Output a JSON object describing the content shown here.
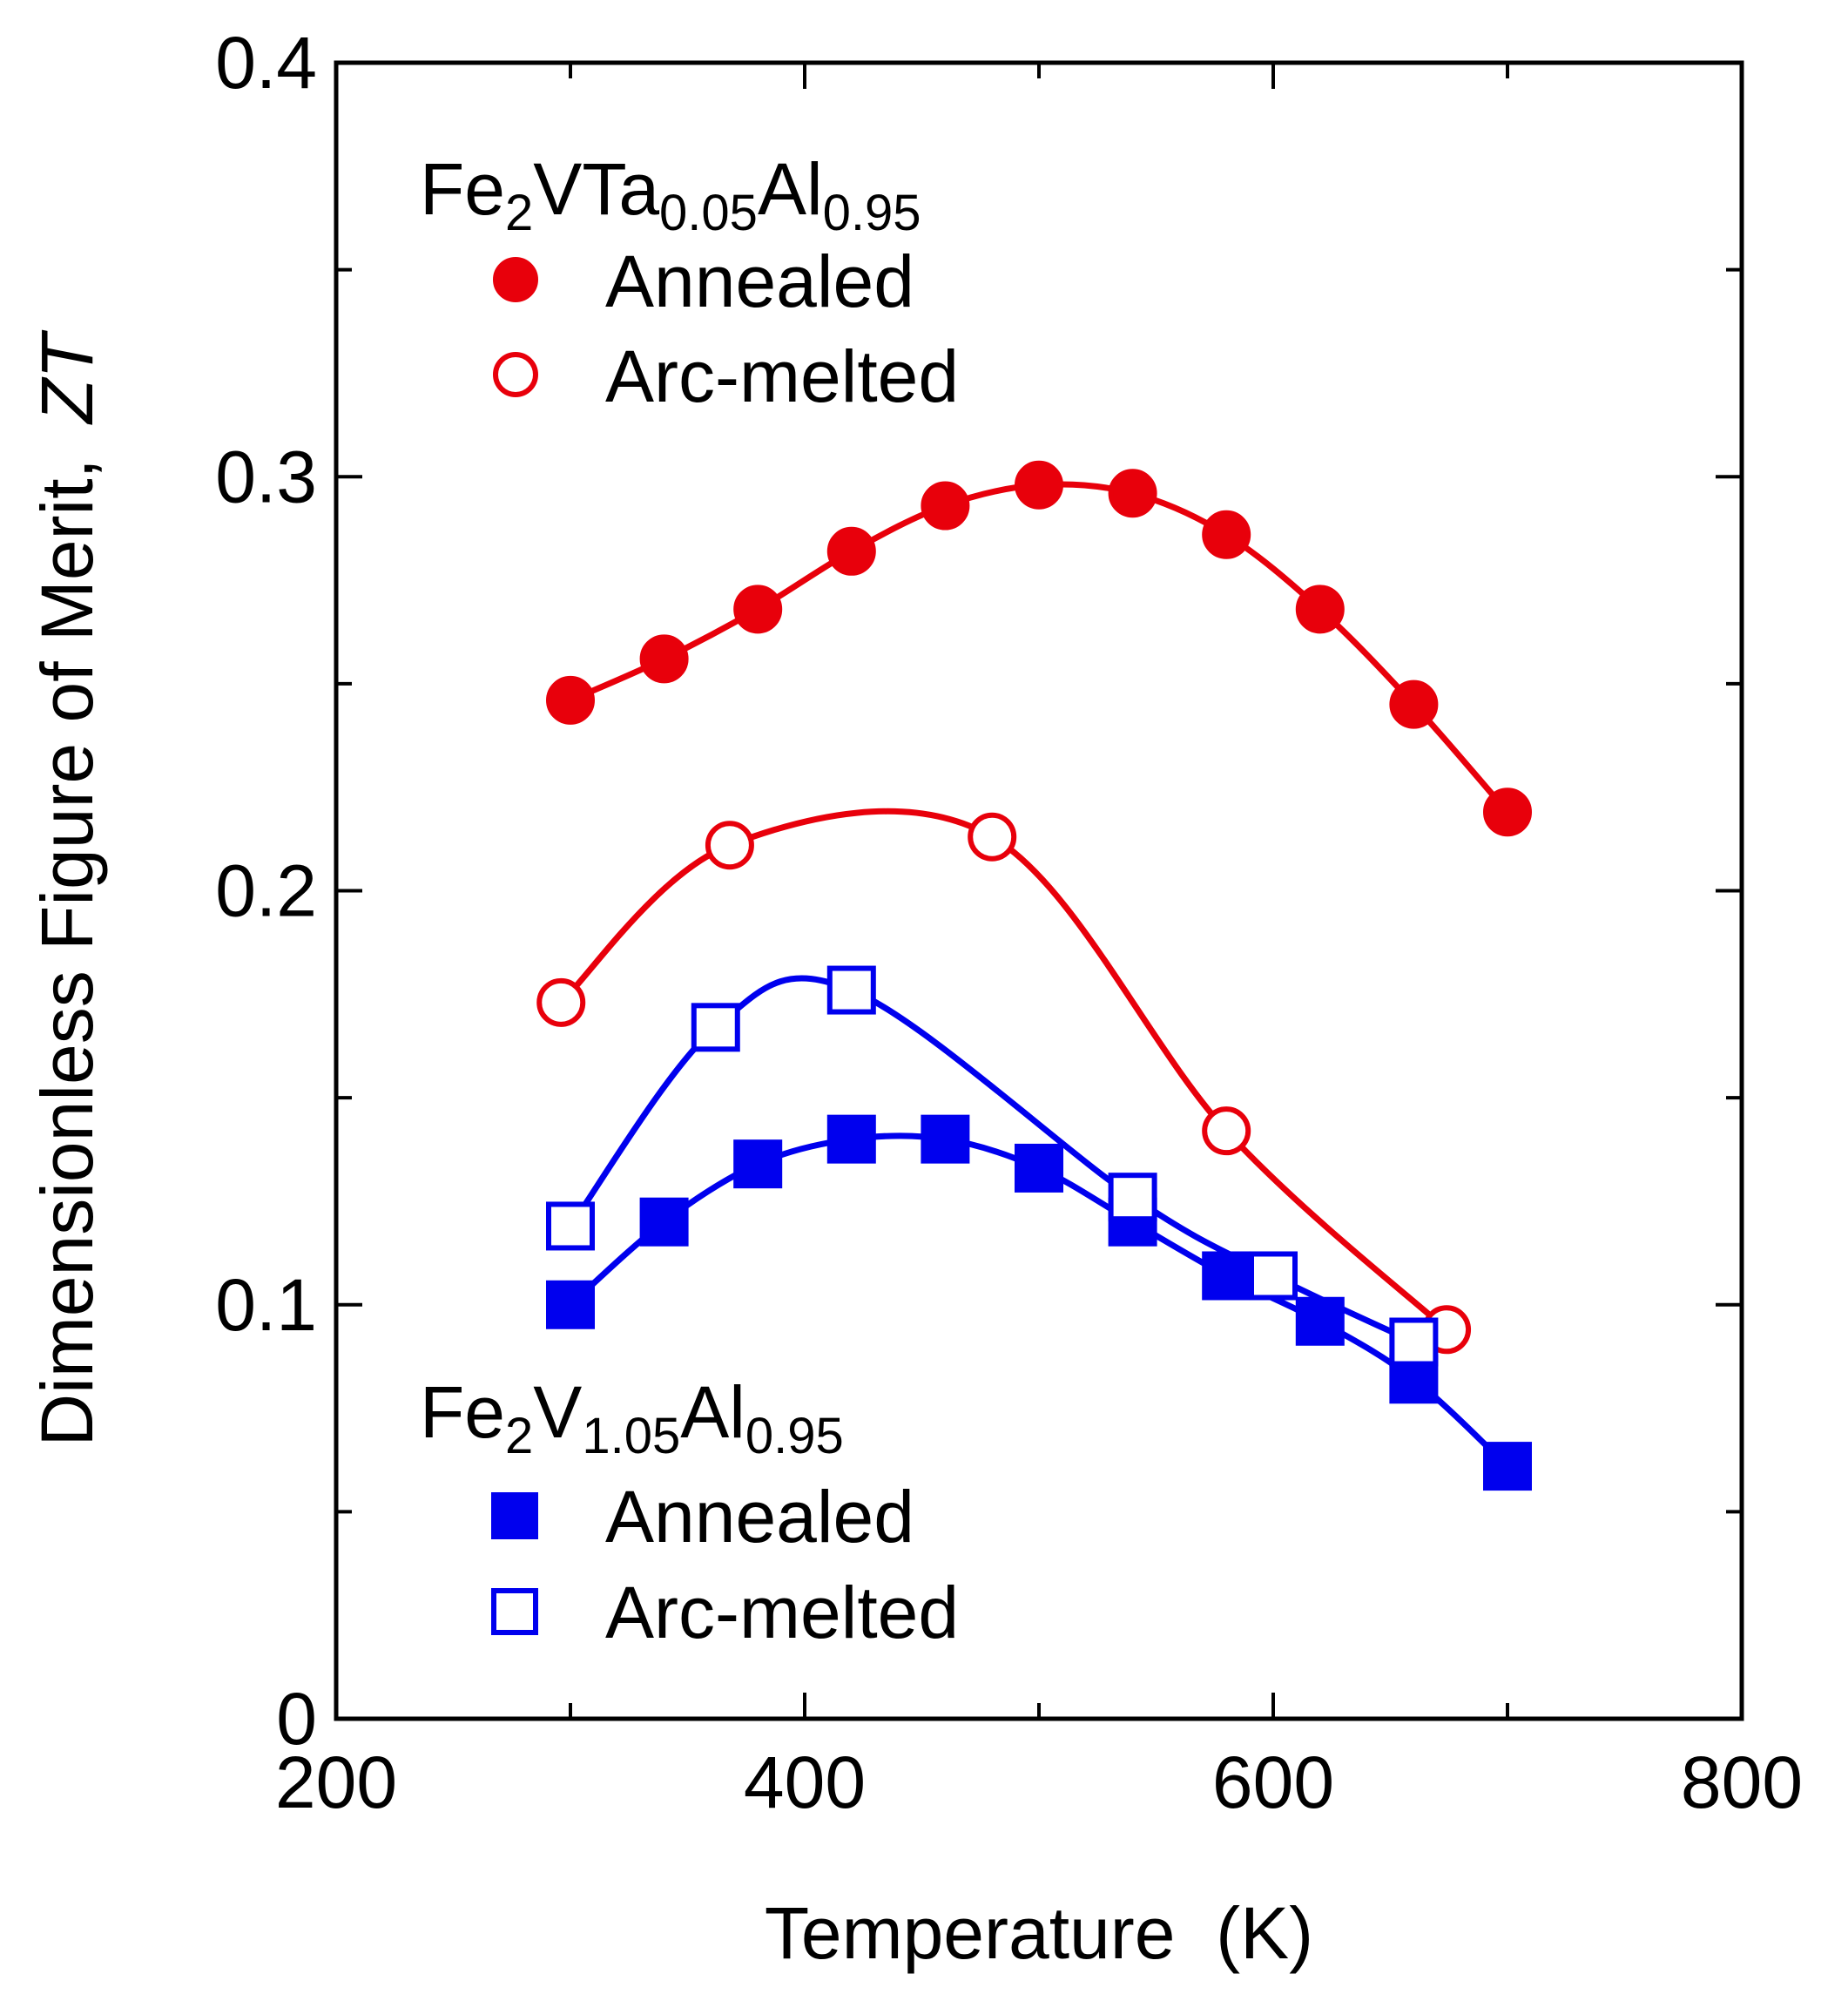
{
  "chart_data": {
    "type": "scatter",
    "title": "",
    "xlabel": "Temperature  (K)",
    "ylabel": "Dimensionless Figure of Merit,",
    "ylabel_symbol": "ZT",
    "xlim": [
      200,
      800
    ],
    "ylim": [
      0,
      0.4
    ],
    "x_ticks": [
      "200",
      "400",
      "600",
      "800"
    ],
    "y_ticks": [
      "0",
      "0.1",
      "0.2",
      "0.3",
      "0.4"
    ],
    "groups": [
      {
        "name": "Fe2VTa0.05Al0.95",
        "label_parts": [
          {
            "text": "Fe",
            "sub": false
          },
          {
            "text": "2",
            "sub": true
          },
          {
            "text": "VTa",
            "sub": false
          },
          {
            "text": "0.05",
            "sub": true
          },
          {
            "text": "Al",
            "sub": false
          },
          {
            "text": "0.95",
            "sub": true
          }
        ]
      },
      {
        "name": "Fe2V1.05Al0.95",
        "label_parts": [
          {
            "text": "Fe",
            "sub": false
          },
          {
            "text": "2",
            "sub": true
          },
          {
            "text": "V",
            "sub": false
          },
          {
            "text": "1.05",
            "sub": true
          },
          {
            "text": "Al",
            "sub": false
          },
          {
            "text": "0.95",
            "sub": true
          }
        ]
      }
    ],
    "series": [
      {
        "name": "Annealed",
        "group": 0,
        "marker": "circle",
        "filled": true,
        "color": "#e8000b",
        "x": [
          300,
          340,
          380,
          420,
          460,
          500,
          540,
          580,
          620,
          660,
          700
        ],
        "y": [
          0.246,
          0.256,
          0.268,
          0.282,
          0.293,
          0.298,
          0.296,
          0.286,
          0.268,
          0.245,
          0.219
        ]
      },
      {
        "name": "Arc-melted",
        "group": 0,
        "marker": "circle",
        "filled": false,
        "color": "#e8000b",
        "x": [
          296,
          368,
          480,
          580,
          674
        ],
        "y": [
          0.173,
          0.211,
          0.213,
          0.142,
          0.094
        ]
      },
      {
        "name": "Annealed",
        "group": 1,
        "marker": "square",
        "filled": true,
        "color": "#0000ee",
        "x": [
          300,
          340,
          380,
          420,
          460,
          500,
          540,
          580,
          620,
          660,
          700
        ],
        "y": [
          0.1,
          0.12,
          0.134,
          0.14,
          0.14,
          0.133,
          0.12,
          0.107,
          0.096,
          0.082,
          0.061
        ]
      },
      {
        "name": "Arc-melted",
        "group": 1,
        "marker": "square",
        "filled": false,
        "color": "#0000ee",
        "x": [
          300,
          362,
          420,
          540,
          600,
          660
        ],
        "y": [
          0.119,
          0.167,
          0.176,
          0.126,
          0.107,
          0.091
        ]
      }
    ]
  }
}
